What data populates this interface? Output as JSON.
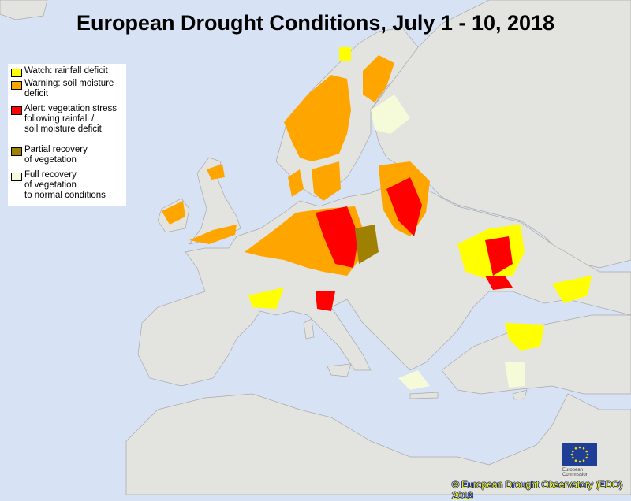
{
  "title": "European Drought Conditions, July 1 - 10, 2018",
  "colors": {
    "sea": "#d7e3f4",
    "land": "#e3e3df",
    "watch": "#ffff00",
    "warning": "#ffa500",
    "alert": "#ff0000",
    "partial": "#a08000",
    "full": "#f5fbd8"
  },
  "legend": {
    "items": [
      {
        "label": "Watch: rainfall deficit",
        "color": "#ffff00"
      },
      {
        "label": "Warning: soil moisture\ndeficit",
        "color": "#ffa500"
      },
      {
        "label": "Alert: vegetation stress\nfollowing rainfall /\nsoil moisture deficit",
        "color": "#ff0000"
      },
      {
        "label": "Partial recovery\nof vegetation",
        "color": "#a08000"
      },
      {
        "label": "Full recovery\nof vegetation\nto normal conditions",
        "color": "#f5fbd8"
      }
    ]
  },
  "logo": {
    "text": "European\nCommission"
  },
  "credit": "© European Drought Observatory (EDO) 2018"
}
